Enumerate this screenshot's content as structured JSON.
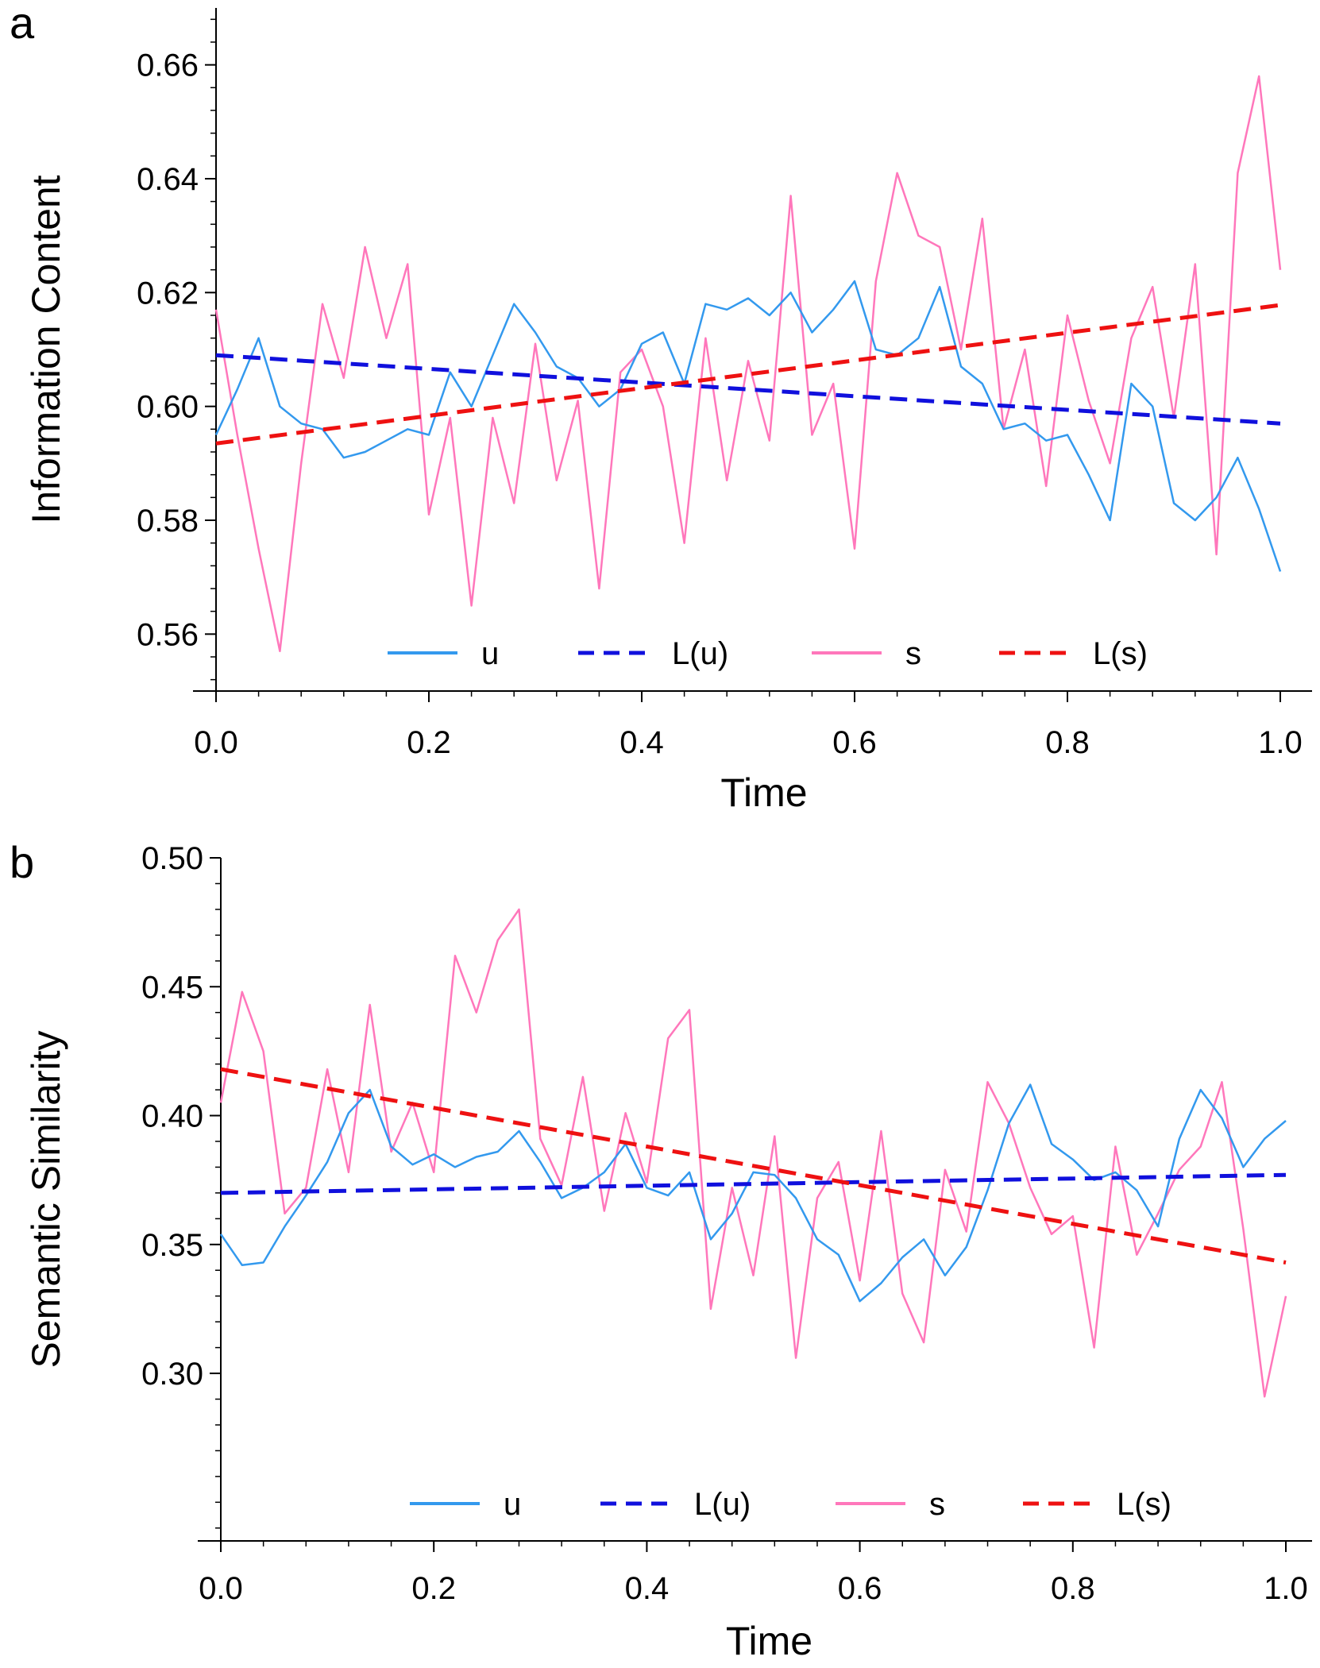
{
  "chart_data": [
    {
      "type": "line",
      "panel_label": "a",
      "xlabel": "Time",
      "ylabel": "Information Content",
      "xlim": [
        0.0,
        1.0
      ],
      "ylim": [
        0.55,
        0.67
      ],
      "x_ticks": [
        "0.0",
        "0.2",
        "0.4",
        "0.6",
        "0.8",
        "1.0"
      ],
      "y_ticks": [
        "0.56",
        "0.58",
        "0.60",
        "0.62",
        "0.64",
        "0.66"
      ],
      "grid": false,
      "legend_position": "bottom",
      "series": [
        {
          "name": "u",
          "style": "solid",
          "color": "#3399ee",
          "x": [
            0.0,
            0.02,
            0.04,
            0.06,
            0.08,
            0.1,
            0.12,
            0.14,
            0.16,
            0.18,
            0.2,
            0.22,
            0.24,
            0.26,
            0.28,
            0.3,
            0.32,
            0.34,
            0.36,
            0.38,
            0.4,
            0.42,
            0.44,
            0.46,
            0.48,
            0.5,
            0.52,
            0.54,
            0.56,
            0.58,
            0.6,
            0.62,
            0.64,
            0.66,
            0.68,
            0.7,
            0.72,
            0.74,
            0.76,
            0.78,
            0.8,
            0.82,
            0.84,
            0.86,
            0.88,
            0.9,
            0.92,
            0.94,
            0.96,
            0.98,
            1.0
          ],
          "y": [
            0.595,
            0.603,
            0.612,
            0.6,
            0.597,
            0.596,
            0.591,
            0.592,
            0.594,
            0.596,
            0.595,
            0.606,
            0.6,
            0.609,
            0.618,
            0.613,
            0.607,
            0.605,
            0.6,
            0.603,
            0.611,
            0.613,
            0.604,
            0.618,
            0.617,
            0.619,
            0.616,
            0.62,
            0.613,
            0.617,
            0.622,
            0.61,
            0.609,
            0.612,
            0.621,
            0.607,
            0.604,
            0.596,
            0.597,
            0.594,
            0.595,
            0.588,
            0.58,
            0.604,
            0.6,
            0.583,
            0.58,
            0.584,
            0.591,
            0.582,
            0.571
          ]
        },
        {
          "name": "L(u)",
          "style": "dashed",
          "color": "#1010dd",
          "x": [
            0.0,
            1.0
          ],
          "y": [
            0.609,
            0.597
          ]
        },
        {
          "name": "s",
          "style": "solid",
          "color": "#ff77bb",
          "x": [
            0.0,
            0.02,
            0.04,
            0.06,
            0.08,
            0.1,
            0.12,
            0.14,
            0.16,
            0.18,
            0.2,
            0.22,
            0.24,
            0.26,
            0.28,
            0.3,
            0.32,
            0.34,
            0.36,
            0.38,
            0.4,
            0.42,
            0.44,
            0.46,
            0.48,
            0.5,
            0.52,
            0.54,
            0.56,
            0.58,
            0.6,
            0.62,
            0.64,
            0.66,
            0.68,
            0.7,
            0.72,
            0.74,
            0.76,
            0.78,
            0.8,
            0.82,
            0.84,
            0.86,
            0.88,
            0.9,
            0.92,
            0.94,
            0.96,
            0.98,
            1.0
          ],
          "y": [
            0.617,
            0.595,
            0.575,
            0.557,
            0.59,
            0.618,
            0.605,
            0.628,
            0.612,
            0.625,
            0.581,
            0.598,
            0.565,
            0.598,
            0.583,
            0.611,
            0.587,
            0.601,
            0.568,
            0.606,
            0.61,
            0.6,
            0.576,
            0.612,
            0.587,
            0.608,
            0.594,
            0.637,
            0.595,
            0.604,
            0.575,
            0.622,
            0.641,
            0.63,
            0.628,
            0.61,
            0.633,
            0.596,
            0.61,
            0.586,
            0.616,
            0.601,
            0.59,
            0.612,
            0.621,
            0.598,
            0.625,
            0.574,
            0.641,
            0.658,
            0.624
          ]
        },
        {
          "name": "L(s)",
          "style": "dashed",
          "color": "#ee1111",
          "x": [
            0.0,
            1.0
          ],
          "y": [
            0.5935,
            0.6178
          ]
        }
      ]
    },
    {
      "type": "line",
      "panel_label": "b",
      "xlabel": "Time",
      "ylabel": "Semantic Similarity",
      "xlim": [
        0.0,
        1.0
      ],
      "ylim": [
        0.235,
        0.5
      ],
      "x_ticks": [
        "0.0",
        "0.2",
        "0.4",
        "0.6",
        "0.8",
        "1.0"
      ],
      "y_ticks": [
        "0.30",
        "0.35",
        "0.40",
        "0.45",
        "0.50"
      ],
      "grid": false,
      "legend_position": "bottom",
      "series": [
        {
          "name": "u",
          "style": "solid",
          "color": "#3399ee",
          "x": [
            0.0,
            0.02,
            0.04,
            0.06,
            0.08,
            0.1,
            0.12,
            0.14,
            0.16,
            0.18,
            0.2,
            0.22,
            0.24,
            0.26,
            0.28,
            0.3,
            0.32,
            0.34,
            0.36,
            0.38,
            0.4,
            0.42,
            0.44,
            0.46,
            0.48,
            0.5,
            0.52,
            0.54,
            0.56,
            0.58,
            0.6,
            0.62,
            0.64,
            0.66,
            0.68,
            0.7,
            0.72,
            0.74,
            0.76,
            0.78,
            0.8,
            0.82,
            0.84,
            0.86,
            0.88,
            0.9,
            0.92,
            0.94,
            0.96,
            0.98,
            1.0
          ],
          "y": [
            0.354,
            0.342,
            0.343,
            0.357,
            0.369,
            0.382,
            0.401,
            0.41,
            0.388,
            0.381,
            0.385,
            0.38,
            0.384,
            0.386,
            0.394,
            0.382,
            0.368,
            0.372,
            0.378,
            0.389,
            0.372,
            0.369,
            0.378,
            0.352,
            0.362,
            0.378,
            0.377,
            0.368,
            0.352,
            0.346,
            0.328,
            0.335,
            0.345,
            0.352,
            0.338,
            0.349,
            0.371,
            0.397,
            0.412,
            0.389,
            0.383,
            0.375,
            0.378,
            0.371,
            0.357,
            0.391,
            0.41,
            0.399,
            0.38,
            0.391,
            0.398
          ]
        },
        {
          "name": "L(u)",
          "style": "dashed",
          "color": "#1010dd",
          "x": [
            0.0,
            1.0
          ],
          "y": [
            0.37,
            0.377
          ]
        },
        {
          "name": "s",
          "style": "solid",
          "color": "#ff77bb",
          "x": [
            0.0,
            0.02,
            0.04,
            0.06,
            0.08,
            0.1,
            0.12,
            0.14,
            0.16,
            0.18,
            0.2,
            0.22,
            0.24,
            0.26,
            0.28,
            0.3,
            0.32,
            0.34,
            0.36,
            0.38,
            0.4,
            0.42,
            0.44,
            0.46,
            0.48,
            0.5,
            0.52,
            0.54,
            0.56,
            0.58,
            0.6,
            0.62,
            0.64,
            0.66,
            0.68,
            0.7,
            0.72,
            0.74,
            0.76,
            0.78,
            0.8,
            0.82,
            0.84,
            0.86,
            0.88,
            0.9,
            0.92,
            0.94,
            0.96,
            0.98,
            1.0
          ],
          "y": [
            0.405,
            0.448,
            0.425,
            0.362,
            0.372,
            0.418,
            0.378,
            0.443,
            0.386,
            0.405,
            0.378,
            0.462,
            0.44,
            0.468,
            0.48,
            0.391,
            0.373,
            0.415,
            0.363,
            0.401,
            0.374,
            0.43,
            0.441,
            0.325,
            0.372,
            0.338,
            0.392,
            0.306,
            0.368,
            0.382,
            0.336,
            0.394,
            0.331,
            0.312,
            0.379,
            0.355,
            0.413,
            0.397,
            0.372,
            0.354,
            0.361,
            0.31,
            0.388,
            0.346,
            0.362,
            0.379,
            0.388,
            0.413,
            0.356,
            0.291,
            0.33
          ]
        },
        {
          "name": "L(s)",
          "style": "dashed",
          "color": "#ee1111",
          "x": [
            0.0,
            1.0
          ],
          "y": [
            0.418,
            0.343
          ]
        }
      ]
    }
  ]
}
